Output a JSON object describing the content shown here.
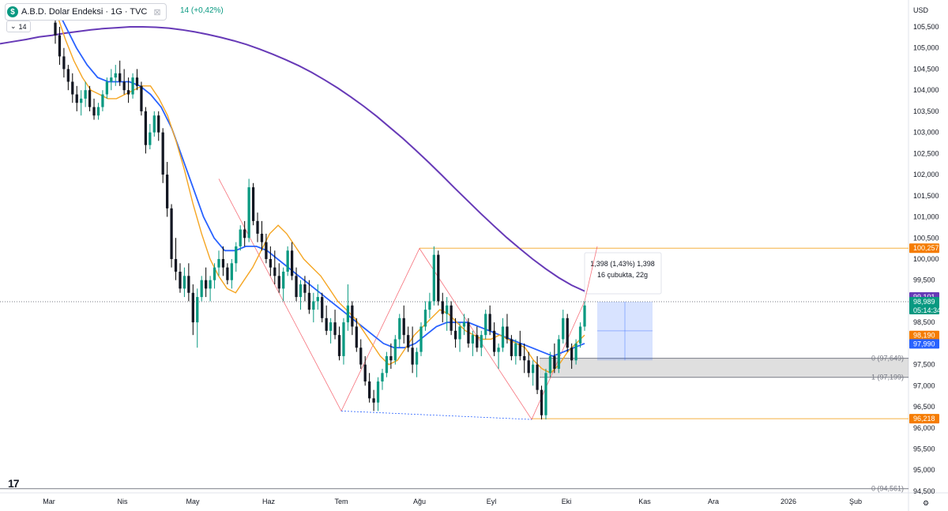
{
  "header": {
    "symbol": "A.B.D. Dolar Endeksi · 1G · TVC",
    "logo_letter": "$",
    "change": "14 (+0,42%)",
    "period": "14",
    "currency": "USD"
  },
  "chart_data": {
    "type": "candlestick",
    "x_labels": [
      "Mar",
      "Nis",
      "May",
      "Haz",
      "Tem",
      "Ağu",
      "Eyl",
      "Eki",
      "Kas",
      "Ara",
      "2026",
      "Şub"
    ],
    "y_ticks": [
      "105,500",
      "105,000",
      "104,500",
      "104,000",
      "103,500",
      "103,000",
      "102,500",
      "102,000",
      "101,500",
      "101,000",
      "100,500",
      "100,000",
      "99,500",
      "99,000",
      "98,500",
      "98,000",
      "97,500",
      "97,000",
      "96,500",
      "96,000",
      "95,500",
      "95,000",
      "94,500"
    ],
    "ylim": [
      94.5,
      106.0
    ],
    "price_badges": [
      {
        "label": "100,257",
        "value": 100.257,
        "color": "#f57c00"
      },
      {
        "label": "99,101",
        "value": 99.101,
        "color": "#673ab7"
      },
      {
        "label": "98,989",
        "sub": "05:14:34",
        "value": 98.989,
        "color": "#089981"
      },
      {
        "label": "98,190",
        "value": 98.19,
        "color": "#f57c00"
      },
      {
        "label": "97,990",
        "value": 97.99,
        "color": "#2962ff"
      },
      {
        "label": "96,218",
        "value": 96.218,
        "color": "#f57c00"
      }
    ],
    "fib_labels": [
      {
        "label": "0 (97,649)",
        "value": 97.649
      },
      {
        "label": "1 (97,199)",
        "value": 97.199
      },
      {
        "label": "0 (94,561)",
        "value": 94.561
      }
    ],
    "measure": {
      "line1": "1,398 (1,43%) 1,398",
      "line2": "16 çubukta, 22g"
    },
    "candles": [
      [
        105.6,
        106.0,
        105.1,
        105.3
      ],
      [
        105.3,
        105.5,
        104.6,
        104.8
      ],
      [
        104.8,
        105.0,
        104.3,
        104.5
      ],
      [
        104.5,
        104.6,
        104.0,
        104.2
      ],
      [
        104.2,
        104.4,
        103.7,
        103.9
      ],
      [
        103.9,
        104.1,
        103.5,
        103.7
      ],
      [
        103.7,
        104.0,
        103.4,
        103.8
      ],
      [
        103.8,
        104.2,
        103.6,
        104.0
      ],
      [
        104.0,
        104.1,
        103.5,
        103.6
      ],
      [
        103.6,
        103.8,
        103.3,
        103.4
      ],
      [
        103.4,
        103.7,
        103.3,
        103.6
      ],
      [
        103.6,
        104.0,
        103.5,
        103.9
      ],
      [
        103.9,
        104.3,
        103.8,
        104.2
      ],
      [
        104.2,
        104.5,
        104.0,
        104.3
      ],
      [
        104.3,
        104.6,
        104.1,
        104.4
      ],
      [
        104.4,
        104.7,
        104.1,
        104.2
      ],
      [
        104.2,
        104.5,
        103.9,
        104.0
      ],
      [
        104.0,
        104.3,
        103.7,
        103.9
      ],
      [
        103.9,
        104.4,
        103.8,
        104.3
      ],
      [
        104.3,
        104.5,
        104.0,
        104.1
      ],
      [
        104.1,
        104.2,
        103.4,
        103.5
      ],
      [
        103.5,
        103.6,
        102.5,
        102.7
      ],
      [
        102.7,
        103.2,
        102.6,
        103.0
      ],
      [
        103.0,
        103.5,
        102.9,
        103.4
      ],
      [
        103.4,
        103.5,
        102.8,
        103.0
      ],
      [
        103.0,
        103.1,
        101.8,
        102.0
      ],
      [
        102.0,
        102.3,
        101.0,
        101.2
      ],
      [
        101.2,
        101.3,
        99.8,
        100.0
      ],
      [
        100.0,
        100.5,
        99.5,
        99.7
      ],
      [
        99.7,
        99.9,
        99.2,
        99.3
      ],
      [
        99.3,
        99.8,
        99.1,
        99.6
      ],
      [
        99.6,
        99.9,
        99.0,
        99.2
      ],
      [
        99.2,
        99.4,
        98.2,
        98.5
      ],
      [
        98.5,
        99.3,
        97.9,
        99.1
      ],
      [
        99.1,
        99.6,
        99.0,
        99.5
      ],
      [
        99.5,
        99.8,
        99.1,
        99.3
      ],
      [
        99.3,
        99.6,
        99.0,
        99.5
      ],
      [
        99.5,
        99.9,
        99.3,
        99.8
      ],
      [
        99.8,
        100.2,
        99.6,
        100.0
      ],
      [
        100.0,
        100.3,
        99.6,
        99.8
      ],
      [
        99.8,
        99.9,
        99.4,
        99.5
      ],
      [
        99.5,
        100.0,
        99.3,
        99.9
      ],
      [
        99.9,
        100.4,
        99.7,
        100.3
      ],
      [
        100.3,
        100.8,
        100.2,
        100.7
      ],
      [
        100.7,
        100.9,
        100.3,
        100.5
      ],
      [
        100.5,
        101.9,
        100.4,
        101.7
      ],
      [
        101.7,
        101.8,
        100.8,
        100.9
      ],
      [
        100.9,
        101.1,
        100.4,
        100.6
      ],
      [
        100.6,
        100.9,
        100.2,
        100.4
      ],
      [
        100.4,
        100.6,
        99.9,
        100.0
      ],
      [
        100.0,
        100.3,
        99.6,
        99.8
      ],
      [
        99.8,
        100.2,
        99.4,
        99.6
      ],
      [
        99.6,
        99.9,
        99.2,
        99.3
      ],
      [
        99.3,
        99.8,
        99.0,
        99.7
      ],
      [
        99.7,
        100.3,
        99.6,
        100.2
      ],
      [
        100.2,
        100.4,
        99.5,
        99.6
      ],
      [
        99.6,
        99.8,
        99.0,
        99.1
      ],
      [
        99.1,
        99.5,
        98.8,
        99.4
      ],
      [
        99.4,
        99.6,
        99.0,
        99.2
      ],
      [
        99.2,
        99.5,
        98.7,
        98.8
      ],
      [
        98.8,
        99.2,
        98.5,
        99.0
      ],
      [
        99.0,
        99.4,
        98.8,
        99.1
      ],
      [
        99.1,
        99.2,
        98.5,
        98.6
      ],
      [
        98.6,
        98.9,
        98.2,
        98.3
      ],
      [
        98.3,
        98.6,
        98.0,
        98.5
      ],
      [
        98.5,
        98.8,
        98.1,
        98.2
      ],
      [
        98.2,
        98.4,
        97.6,
        97.7
      ],
      [
        97.7,
        98.6,
        97.5,
        98.5
      ],
      [
        98.5,
        99.4,
        98.3,
        98.9
      ],
      [
        98.9,
        99.0,
        98.2,
        98.4
      ],
      [
        98.4,
        98.6,
        97.8,
        97.9
      ],
      [
        97.9,
        98.1,
        97.4,
        97.5
      ],
      [
        97.5,
        97.7,
        97.0,
        97.1
      ],
      [
        97.1,
        97.3,
        96.6,
        96.7
      ],
      [
        96.7,
        96.9,
        96.4,
        96.6
      ],
      [
        96.6,
        97.2,
        96.4,
        97.1
      ],
      [
        97.1,
        97.4,
        96.9,
        97.3
      ],
      [
        97.3,
        97.8,
        97.2,
        97.7
      ],
      [
        97.7,
        98.0,
        97.4,
        97.6
      ],
      [
        97.6,
        98.2,
        97.5,
        98.1
      ],
      [
        98.1,
        98.7,
        97.9,
        98.6
      ],
      [
        98.6,
        98.9,
        98.0,
        98.2
      ],
      [
        98.2,
        98.4,
        97.8,
        97.9
      ],
      [
        97.9,
        98.4,
        97.3,
        97.5
      ],
      [
        97.5,
        97.9,
        97.2,
        97.8
      ],
      [
        97.8,
        98.5,
        97.7,
        98.4
      ],
      [
        98.4,
        99.0,
        98.3,
        98.8
      ],
      [
        98.8,
        99.2,
        98.6,
        99.0
      ],
      [
        99.0,
        100.3,
        98.9,
        100.1
      ],
      [
        100.1,
        100.2,
        98.9,
        99.0
      ],
      [
        99.0,
        99.2,
        98.5,
        98.7
      ],
      [
        98.7,
        99.1,
        98.3,
        98.9
      ],
      [
        98.9,
        99.0,
        98.2,
        98.3
      ],
      [
        98.3,
        98.6,
        97.9,
        98.1
      ],
      [
        98.1,
        98.5,
        97.8,
        98.4
      ],
      [
        98.4,
        98.7,
        98.2,
        98.5
      ],
      [
        98.5,
        98.6,
        97.9,
        98.0
      ],
      [
        98.0,
        98.3,
        97.7,
        98.2
      ],
      [
        98.2,
        98.4,
        97.8,
        97.9
      ],
      [
        97.9,
        98.3,
        97.7,
        98.2
      ],
      [
        98.2,
        98.8,
        98.1,
        98.7
      ],
      [
        98.7,
        98.9,
        98.2,
        98.3
      ],
      [
        98.3,
        98.5,
        97.7,
        97.8
      ],
      [
        97.8,
        98.0,
        97.4,
        97.9
      ],
      [
        97.9,
        98.6,
        97.8,
        98.4
      ],
      [
        98.4,
        98.7,
        98.0,
        98.1
      ],
      [
        98.1,
        98.2,
        97.6,
        97.7
      ],
      [
        97.7,
        98.1,
        97.5,
        98.0
      ],
      [
        98.0,
        98.3,
        97.6,
        97.7
      ],
      [
        97.7,
        98.0,
        97.3,
        97.6
      ],
      [
        97.6,
        97.8,
        97.2,
        97.3
      ],
      [
        97.3,
        97.6,
        97.0,
        97.5
      ],
      [
        97.5,
        97.7,
        96.8,
        96.9
      ],
      [
        96.9,
        97.0,
        96.2,
        96.3
      ],
      [
        96.3,
        97.4,
        96.2,
        97.3
      ],
      [
        97.3,
        97.8,
        97.2,
        97.7
      ],
      [
        97.7,
        98.0,
        97.3,
        97.4
      ],
      [
        97.4,
        98.2,
        97.3,
        98.1
      ],
      [
        98.1,
        98.8,
        98.0,
        98.6
      ],
      [
        98.6,
        98.7,
        97.8,
        97.9
      ],
      [
        97.9,
        98.0,
        97.4,
        97.6
      ],
      [
        97.6,
        98.1,
        97.5,
        98.0
      ],
      [
        98.0,
        98.5,
        97.9,
        98.4
      ],
      [
        98.4,
        99.0,
        98.3,
        98.9
      ]
    ],
    "ma_slow": [
      105.1,
      105.15,
      105.2,
      105.26,
      105.3,
      105.35,
      105.39,
      105.43,
      105.46,
      105.48,
      105.5,
      105.5,
      105.49,
      105.47,
      105.43,
      105.38,
      105.32,
      105.25,
      105.17,
      105.08,
      104.97,
      104.85,
      104.72,
      104.58,
      104.42,
      104.24,
      104.05,
      103.84,
      103.62,
      103.38,
      103.12,
      102.86,
      102.58,
      102.29,
      101.99,
      101.68,
      101.38,
      101.08,
      100.79,
      100.51,
      100.25,
      100.0,
      99.77,
      99.56,
      99.38,
      99.24
    ],
    "ma_fast": [
      105.8,
      105.2,
      104.7,
      104.3,
      104.0,
      103.9,
      103.8,
      103.8,
      103.9,
      104.0,
      104.1,
      104.1,
      103.8,
      103.4,
      102.8,
      102.1,
      101.3,
      100.6,
      100.0,
      99.6,
      99.3,
      99.2,
      99.5,
      99.8,
      100.2,
      100.6,
      100.8,
      100.6,
      100.3,
      100.0,
      99.8,
      99.6,
      99.3,
      99.0,
      98.8,
      98.6,
      98.3,
      98.0,
      97.7,
      97.5,
      97.6,
      97.9,
      98.2,
      98.4,
      98.6,
      98.8,
      98.7,
      98.5,
      98.3,
      98.2,
      98.1,
      98.1,
      98.2,
      98.1,
      98.0,
      97.9,
      97.6,
      97.4,
      97.3,
      97.5,
      97.8,
      98.0,
      98.2
    ],
    "ma_mid": [
      106.0,
      105.5,
      105.0,
      104.6,
      104.3,
      104.2,
      104.2,
      104.2,
      104.1,
      103.9,
      103.6,
      103.1,
      102.4,
      101.7,
      101.0,
      100.5,
      100.2,
      100.2,
      100.3,
      100.3,
      100.2,
      100.0,
      99.8,
      99.6,
      99.4,
      99.2,
      99.0,
      98.8,
      98.6,
      98.4,
      98.2,
      98.0,
      97.9,
      97.9,
      98.0,
      98.2,
      98.4,
      98.5,
      98.5,
      98.5,
      98.4,
      98.3,
      98.2,
      98.1,
      98.0,
      97.9,
      97.8,
      97.7,
      97.8,
      97.9,
      98.0
    ]
  }
}
